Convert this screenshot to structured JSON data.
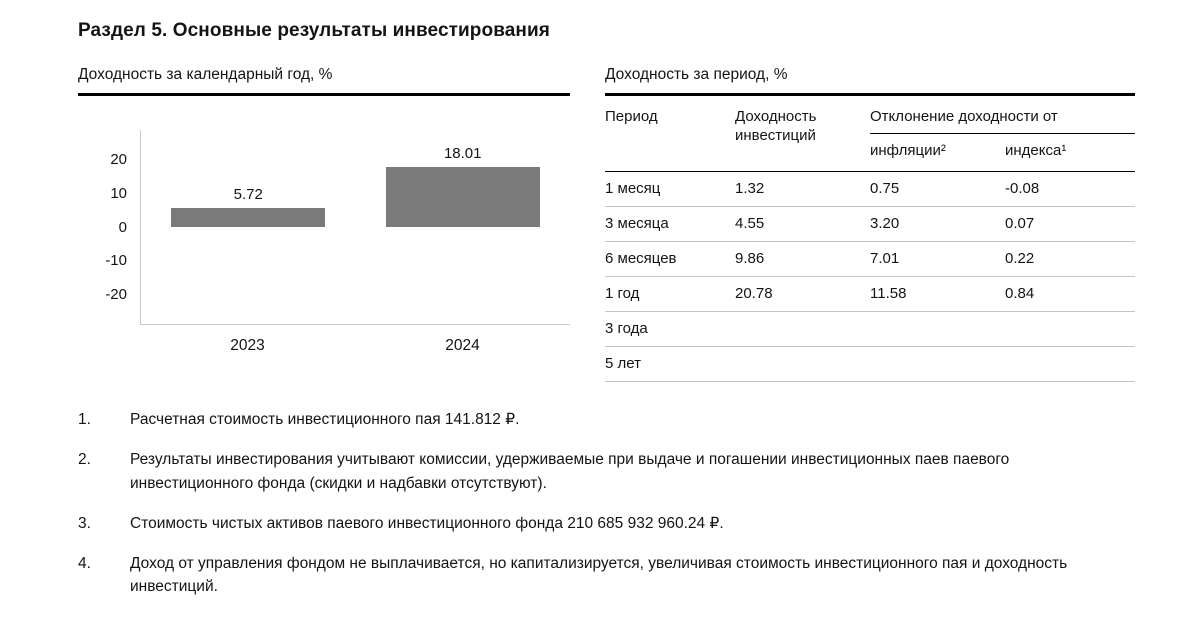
{
  "page": {
    "title": "Раздел 5. Основные результаты инвестирования"
  },
  "chart": {
    "header": "Доходность за календарный год, %"
  },
  "chart_data": {
    "type": "bar",
    "title": "Доходность за календарный год, %",
    "categories": [
      "2023",
      "2024"
    ],
    "values": [
      5.72,
      18.01
    ],
    "value_labels": [
      "5.72",
      "18.01"
    ],
    "xlabel": "",
    "ylabel": "",
    "ylim": [
      -29,
      29
    ],
    "yticks": [
      20,
      10,
      0,
      -10,
      -20
    ],
    "grid": false,
    "legend": false,
    "bar_color": "#7a7a7a"
  },
  "table": {
    "header": "Доходность за период, %",
    "columns": {
      "period": "Период",
      "return": "Доходность инвестиций",
      "deviation_group": "Отклонение доходности от",
      "inflation": "инфляции²",
      "index": "индекса¹"
    },
    "rows": [
      {
        "period": "1 месяц",
        "return": "1.32",
        "inflation": "0.75",
        "index": "-0.08"
      },
      {
        "period": "3 месяца",
        "return": "4.55",
        "inflation": "3.20",
        "index": "0.07"
      },
      {
        "period": "6 месяцев",
        "return": "9.86",
        "inflation": "7.01",
        "index": "0.22"
      },
      {
        "period": "1 год",
        "return": "20.78",
        "inflation": "11.58",
        "index": "0.84"
      },
      {
        "period": "3 года",
        "return": "",
        "inflation": "",
        "index": ""
      },
      {
        "period": "5 лет",
        "return": "",
        "inflation": "",
        "index": ""
      }
    ]
  },
  "notes": [
    {
      "num": "1.",
      "text": "Расчетная стоимость инвестиционного пая 141.812 ₽."
    },
    {
      "num": "2.",
      "text": "Результаты инвестирования учитывают комиссии, удерживаемые при выдаче и погашении инвестиционных паев паевого инвестиционного фонда (скидки и надбавки отсутствуют)."
    },
    {
      "num": "3.",
      "text": "Стоимость чистых активов паевого инвестиционного фонда 210 685 932 960.24 ₽."
    },
    {
      "num": "4.",
      "text": "Доход от управления фондом не выплачивается, но капитализируется, увеличивая стоимость инвестиционного пая и доходность инвестиций."
    }
  ],
  "colors": {
    "bar": "#7a7a7a",
    "rule_strong": "#000000",
    "rule_light": "#c4c4c4",
    "axis": "#c9c9c9"
  }
}
